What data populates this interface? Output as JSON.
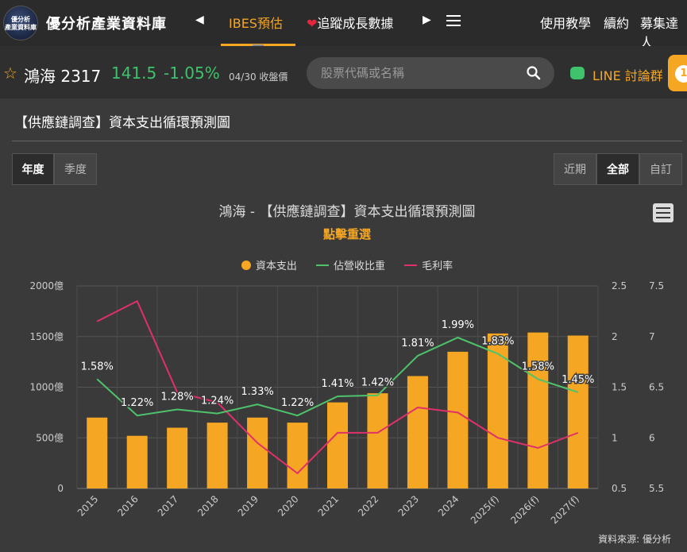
{
  "nav": {
    "logo_text": "優分析\n產業資料庫",
    "site_title": "優分析產業資料庫",
    "prev_arrow": "◀",
    "next_arrow": "▶",
    "tabs": [
      {
        "label": "IBES預估",
        "active": true
      },
      {
        "label": "追蹤成長數據",
        "active": false
      }
    ],
    "right_links": [
      "使用教學",
      "續約",
      "募集達人"
    ]
  },
  "quote": {
    "name": "鴻海 2317",
    "price": "141.5",
    "change": "-1.05%",
    "close_label": "04/30 收盤價",
    "search_placeholder": "股票代碼或名稱",
    "line_label": "LINE 討論群",
    "coin_icon": "1"
  },
  "section": {
    "title": "【供應鏈調查】資本支出循環預測圖",
    "period_buttons": [
      {
        "label": "年度",
        "active": true
      },
      {
        "label": "季度",
        "active": false
      }
    ],
    "range_buttons": [
      {
        "label": "近期",
        "active": false
      },
      {
        "label": "全部",
        "active": true
      },
      {
        "label": "自訂",
        "active": false
      }
    ]
  },
  "chart_data": {
    "type": "bar",
    "title": "鴻海 - 【供應鏈調查】資本支出循環預測圖",
    "subtitle": "點擊重選",
    "categories": [
      "2015",
      "2016",
      "2017",
      "2018",
      "2019",
      "2020",
      "2021",
      "2022",
      "2023",
      "2024",
      "2025(f)",
      "2026(f)",
      "2027(f)"
    ],
    "series": [
      {
        "name": "資本支出",
        "type": "bar",
        "axis": "left",
        "color": "#f5a623",
        "values": [
          700,
          520,
          600,
          650,
          700,
          650,
          850,
          940,
          1110,
          1350,
          1530,
          1540,
          1510
        ]
      },
      {
        "name": "佔營收比重",
        "type": "line",
        "axis": "right1",
        "color": "#4ec36b",
        "values": [
          1.58,
          1.22,
          1.28,
          1.24,
          1.33,
          1.22,
          1.41,
          1.42,
          1.81,
          1.99,
          1.83,
          1.58,
          1.45
        ],
        "labels": [
          "1.58%",
          "1.22%",
          "1.28%",
          "1.24%",
          "1.33%",
          "1.22%",
          "1.41%",
          "1.42%",
          "1.81%",
          "1.99%",
          "1.83%",
          "1.58%",
          "1.45%"
        ]
      },
      {
        "name": "毛利率",
        "type": "line",
        "axis": "right2",
        "color": "#e0306a",
        "values": [
          7.15,
          7.35,
          6.45,
          6.35,
          5.95,
          5.65,
          6.05,
          6.05,
          6.3,
          6.25,
          6.0,
          5.9,
          6.05
        ]
      }
    ],
    "y_left": {
      "ticks": [
        "0",
        "500億",
        "1000億",
        "1500億",
        "2000億"
      ],
      "range": [
        0,
        2000
      ]
    },
    "y_right1": {
      "ticks": [
        "0.5",
        "1",
        "1.5",
        "2",
        "2.5"
      ],
      "range": [
        0.5,
        2.5
      ]
    },
    "y_right2": {
      "ticks": [
        "5.5",
        "6",
        "6.5",
        "7",
        "7.5"
      ],
      "range": [
        5.5,
        7.5
      ]
    },
    "grid": true,
    "legend_position": "top"
  },
  "source": "資料來源: 優分析",
  "colors": {
    "accent": "#f5a623",
    "green": "#4ec36b",
    "pink": "#e0306a"
  }
}
